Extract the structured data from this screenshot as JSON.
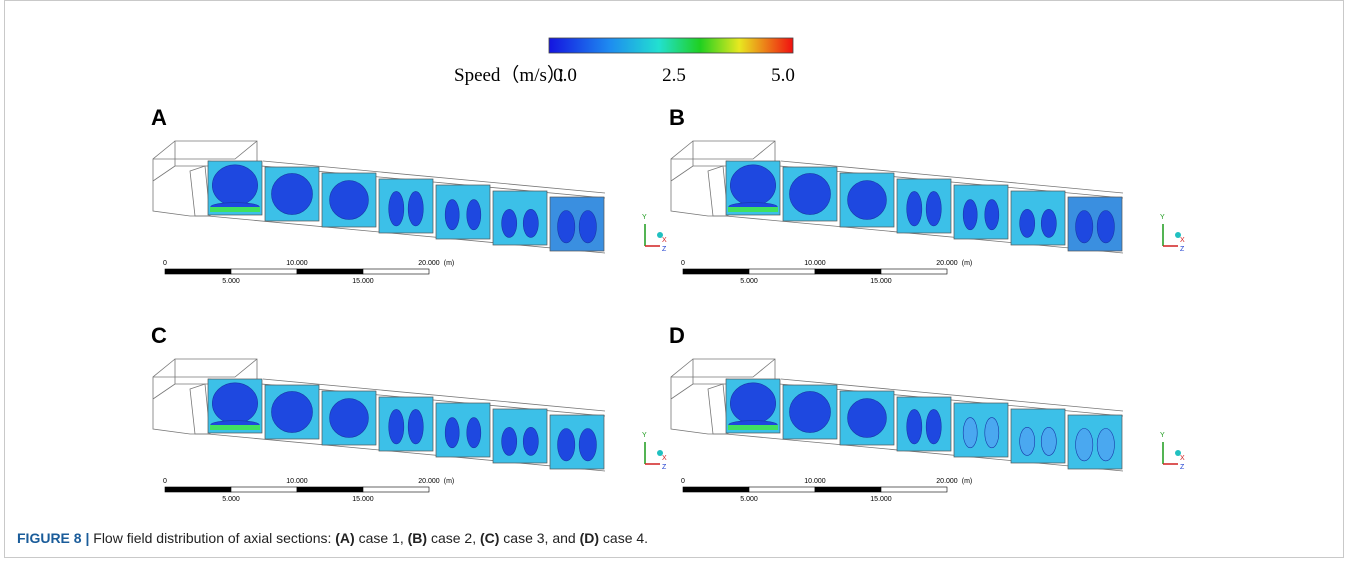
{
  "colorbar": {
    "label": "Speed（m/s）：",
    "range": [
      0,
      5
    ],
    "ticks": [
      {
        "value": 0,
        "label": "0.0"
      },
      {
        "value": 2.5,
        "label": "2.5"
      },
      {
        "value": 5,
        "label": "5.0"
      }
    ]
  },
  "panels": [
    {
      "label": "A",
      "scale_labels": [
        "0",
        "10.000",
        "20.000",
        "(m)",
        "5.000",
        "15.000"
      ],
      "axes": [
        "Y",
        "X",
        "Z"
      ]
    },
    {
      "label": "B",
      "scale_labels": [
        "0",
        "10.000",
        "20.000",
        "(m)",
        "5.000",
        "15.000"
      ],
      "axes": [
        "Y",
        "X",
        "Z"
      ]
    },
    {
      "label": "C",
      "scale_labels": [
        "0",
        "10.000",
        "20.000",
        "(m)",
        "5.000",
        "15.000"
      ],
      "axes": [
        "Y",
        "X",
        "Z"
      ]
    },
    {
      "label": "D",
      "scale_labels": [
        "0",
        "10.000",
        "20.000",
        "(m)",
        "5.000",
        "15.000"
      ],
      "axes": [
        "Y",
        "X",
        "Z"
      ]
    }
  ],
  "caption": [
    "FIGURE 8 |",
    " Flow field distribution of axial sections: ",
    "(A)",
    " case 1, ",
    "(B)",
    " case 2, ",
    "(C)",
    " case 3, and ",
    "(D)",
    " case 4."
  ]
}
